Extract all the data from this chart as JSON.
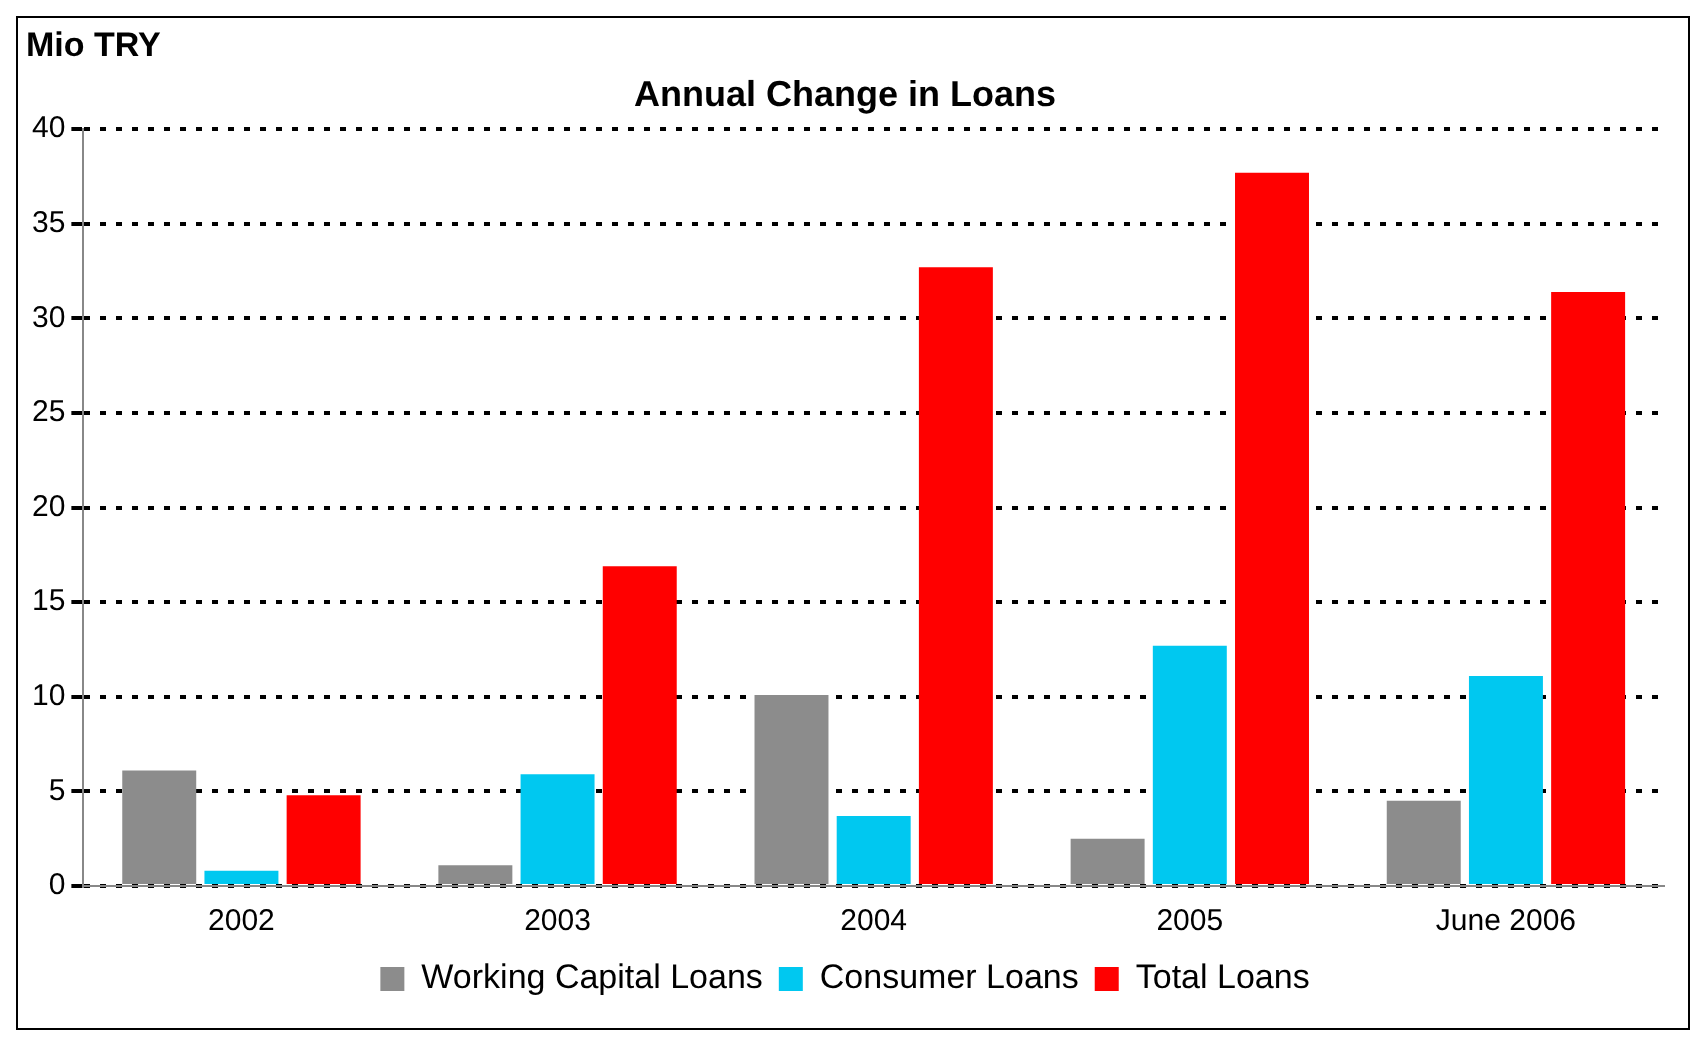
{
  "chart_data": {
    "type": "bar",
    "title": "Annual Change in Loans",
    "ylabel": "Mio TRY",
    "categories": [
      "2002",
      "2003",
      "2004",
      "2005",
      "June 2006"
    ],
    "series": [
      {
        "name": "Working Capital Loans",
        "color": "#8c8c8c",
        "values": [
          6.1,
          1.1,
          10.1,
          2.5,
          4.5
        ]
      },
      {
        "name": "Consumer Loans",
        "color": "#00c8f0",
        "values": [
          0.8,
          5.9,
          3.7,
          12.7,
          11.1
        ]
      },
      {
        "name": "Total Loans",
        "color": "#ff0000",
        "values": [
          4.8,
          16.9,
          32.7,
          37.7,
          31.4
        ]
      }
    ],
    "ylim": [
      0,
      40
    ],
    "yticks": [
      0,
      5,
      10,
      15,
      20,
      25,
      30,
      35,
      40
    ],
    "grid": "y",
    "legend": "bottom"
  }
}
